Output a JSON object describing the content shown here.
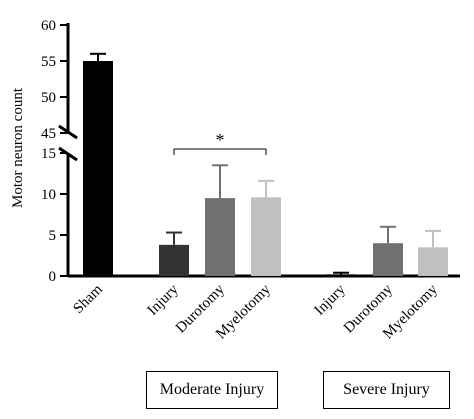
{
  "chart_data": {
    "type": "bar",
    "ylabel": "Motor neuron count",
    "categories": [
      "Sham",
      "Injury",
      "Durotomy",
      "Myelotomy",
      "Injury",
      "Durotomy",
      "Myelotomy"
    ],
    "values": [
      55,
      3.8,
      9.5,
      9.6,
      0.2,
      4.0,
      3.5
    ],
    "errors": [
      1.0,
      1.5,
      4.0,
      2.0,
      0.2,
      2.0,
      2.0
    ],
    "bar_colors": [
      "#000000",
      "#333333",
      "#707070",
      "#c0c0c0",
      "#000000",
      "#707070",
      "#c0c0c0"
    ],
    "y_axis_broken": true,
    "ylim_lower": [
      0,
      15
    ],
    "ylim_upper": [
      45,
      60
    ],
    "yticks_lower": [
      "0",
      "5",
      "10",
      "15"
    ],
    "yticks_upper": [
      "45",
      "50",
      "55",
      "60"
    ],
    "groups": [
      {
        "label": "Moderate Injury",
        "members": [
          "Injury",
          "Durotomy",
          "Myelotomy"
        ]
      },
      {
        "label": "Severe Injury",
        "members": [
          "Injury",
          "Durotomy",
          "Myelotomy"
        ]
      }
    ],
    "significance": {
      "label": "*",
      "between": [
        "Injury",
        "Myelotomy"
      ],
      "group": "Moderate Injury"
    },
    "grid": false
  }
}
